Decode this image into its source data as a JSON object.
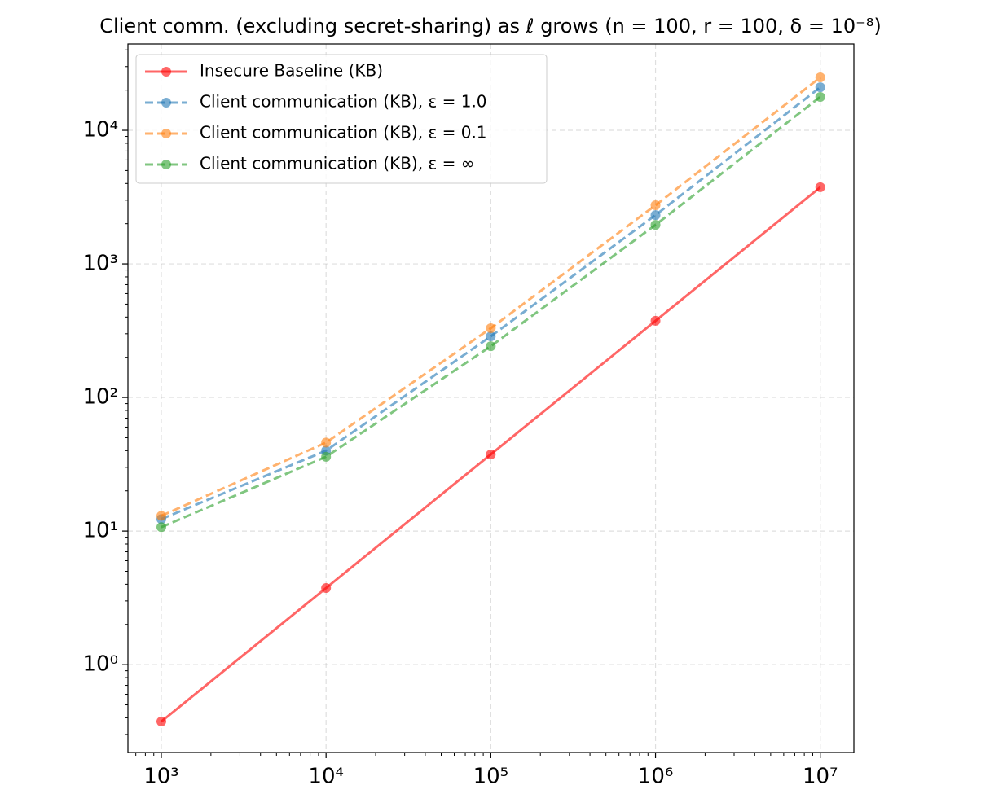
{
  "chart_data": {
    "type": "line",
    "title": "Client comm. (excluding secret-sharing) as ℓ grows (n = 100, r = 100, δ = 10⁻⁸)",
    "x": [
      1000,
      10000,
      100000,
      1000000,
      10000000
    ],
    "xlog": true,
    "ylog": true,
    "grid": true,
    "legend": "upper left",
    "xlim": [
      627,
      16000000
    ],
    "ylim": [
      0.22,
      44300
    ],
    "xticks": [
      {
        "value": 1000,
        "label": "10³"
      },
      {
        "value": 10000,
        "label": "10⁴"
      },
      {
        "value": 100000,
        "label": "10⁵"
      },
      {
        "value": 1000000,
        "label": "10⁶"
      },
      {
        "value": 10000000,
        "label": "10⁷"
      }
    ],
    "yticks": [
      {
        "value": 1,
        "label": "10⁰"
      },
      {
        "value": 10,
        "label": "10¹"
      },
      {
        "value": 100,
        "label": "10²"
      },
      {
        "value": 1000,
        "label": "10³"
      },
      {
        "value": 10000,
        "label": "10⁴"
      }
    ],
    "series": [
      {
        "name": "Insecure Baseline (KB)",
        "color": "#ff0000",
        "style": "solid",
        "values": [
          0.375,
          3.75,
          37.5,
          375,
          3750
        ]
      },
      {
        "name": "Client communication (KB), ε = 1.0",
        "color": "#1f77b4",
        "style": "dashed",
        "values": [
          12.3,
          40,
          287,
          2320,
          21000
        ]
      },
      {
        "name": "Client communication (KB), ε = 0.1",
        "color": "#ff7f0e",
        "style": "dashed",
        "values": [
          13,
          46,
          330,
          2750,
          24900
        ]
      },
      {
        "name": "Client communication (KB), ε = ∞",
        "color": "#2ca02c",
        "style": "dashed",
        "values": [
          10.7,
          36,
          242,
          1960,
          17800
        ]
      }
    ]
  }
}
